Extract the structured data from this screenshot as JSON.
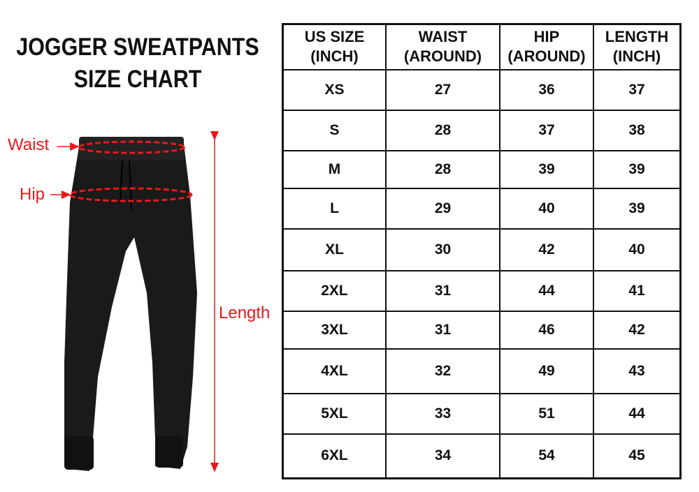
{
  "title": {
    "line1": "JOGGER SWEATPANTS",
    "line2": "SIZE CHART"
  },
  "labels": {
    "waist": "Waist",
    "hip": "Hip",
    "length": "Length"
  },
  "colors": {
    "accent": "#e8191c",
    "pants": "#1a1a1a"
  },
  "table": {
    "headers": [
      {
        "line1": "US SIZE",
        "line2": "(INCH)"
      },
      {
        "line1": "WAIST",
        "line2": "(AROUND)"
      },
      {
        "line1": "HIP",
        "line2": "(AROUND)"
      },
      {
        "line1": "LENGTH",
        "line2": "(INCH)"
      }
    ],
    "rows": [
      [
        "XS",
        "27",
        "36",
        "37"
      ],
      [
        "S",
        "28",
        "37",
        "38"
      ],
      [
        "M",
        "28",
        "39",
        "39"
      ],
      [
        "L",
        "29",
        "40",
        "39"
      ],
      [
        "XL",
        "30",
        "42",
        "40"
      ],
      [
        "2XL",
        "31",
        "44",
        "41"
      ],
      [
        "3XL",
        "31",
        "46",
        "42"
      ],
      [
        "4XL",
        "32",
        "49",
        "43"
      ],
      [
        "5XL",
        "33",
        "51",
        "44"
      ],
      [
        "6XL",
        "34",
        "54",
        "45"
      ]
    ]
  }
}
